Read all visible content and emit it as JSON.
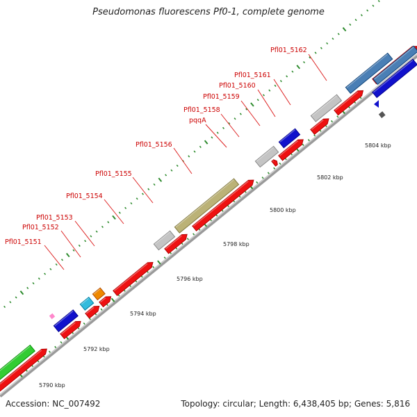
{
  "title": "Pseudomonas fluorescens Pf0-1, complete genome",
  "footer": {
    "accession": "Accession: NC_007492",
    "summary": "Topology: circular; Length: 6,438,405 bp; Genes: 5,816"
  },
  "ticks": [
    "5790 kbp",
    "5792 kbp",
    "5794 kbp",
    "5796 kbp",
    "5798 kbp",
    "5800 kbp",
    "5802 kbp",
    "5804 kbp"
  ],
  "gene_labels": [
    "Pfl01_5151",
    "Pfl01_5152",
    "Pfl01_5153",
    "Pfl01_5154",
    "Pfl01_5155",
    "Pfl01_5156",
    "pqqA",
    "Pfl01_5158",
    "Pfl01_5159",
    "Pfl01_5160",
    "Pfl01_5161",
    "Pfl01_5162"
  ],
  "colors": {
    "cds": "#ee1111",
    "gene_blue": "#1111cc",
    "gene_steel": "#4a7fb5",
    "gene_gray": "#c4c4c4",
    "gene_olive": "#bbb277",
    "gene_orange": "#ee8800",
    "gene_cyan": "#33bbdd",
    "gene_green": "#33cc33",
    "tick_green": "#2e8b2e"
  }
}
